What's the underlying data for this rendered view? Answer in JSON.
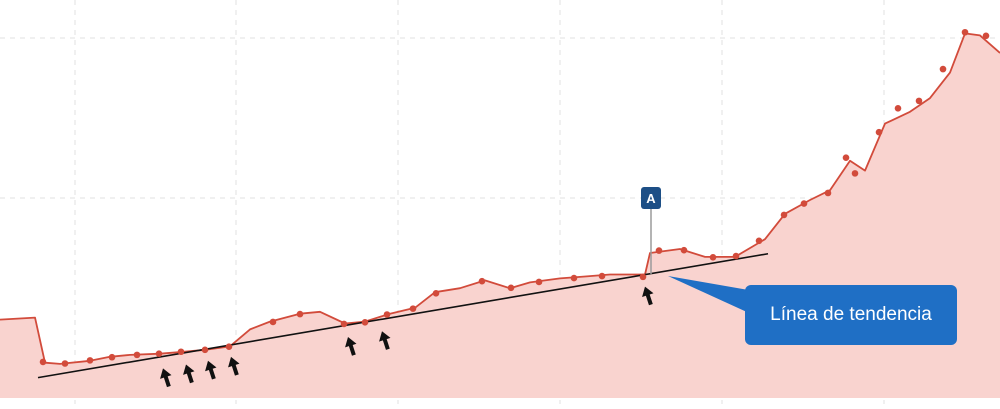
{
  "chart_data": {
    "type": "area",
    "title": "",
    "xlabel": "",
    "ylabel": "",
    "grid": true,
    "xlim": [
      0,
      100
    ],
    "ylim": [
      0,
      100
    ],
    "series": [
      {
        "color": "#d24b3b",
        "fill": "#f9d3cf",
        "points": [
          [
            0,
            20
          ],
          [
            3.5,
            20.5
          ],
          [
            4.5,
            9
          ],
          [
            6,
            8.7
          ],
          [
            9,
            9.5
          ],
          [
            11,
            10.5
          ],
          [
            13,
            11
          ],
          [
            16,
            11.3
          ],
          [
            18.5,
            11.8
          ],
          [
            20.5,
            12.3
          ],
          [
            23,
            13.2
          ],
          [
            25,
            17.5
          ],
          [
            27,
            19.5
          ],
          [
            30,
            21.5
          ],
          [
            32,
            22
          ],
          [
            34.5,
            19
          ],
          [
            36.5,
            19.5
          ],
          [
            39,
            21.5
          ],
          [
            41.5,
            23
          ],
          [
            43.5,
            27
          ],
          [
            46,
            28
          ],
          [
            48.5,
            30
          ],
          [
            51,
            28
          ],
          [
            53,
            29.5
          ],
          [
            56,
            30.5
          ],
          [
            58.5,
            31
          ],
          [
            61,
            31.5
          ],
          [
            64.5,
            31.5
          ],
          [
            65,
            37
          ],
          [
            68,
            38
          ],
          [
            70.5,
            36
          ],
          [
            73.5,
            36
          ],
          [
            76.5,
            40.5
          ],
          [
            78.5,
            47
          ],
          [
            81,
            50.5
          ],
          [
            83,
            53
          ],
          [
            85,
            60.5
          ],
          [
            86.5,
            58
          ],
          [
            88.5,
            70
          ],
          [
            91,
            73
          ],
          [
            93,
            76.5
          ],
          [
            95,
            83
          ],
          [
            96.5,
            93
          ],
          [
            98,
            92.5
          ],
          [
            100,
            88
          ]
        ],
        "markers": [
          [
            4.3,
            9.2
          ],
          [
            6.5,
            8.8
          ],
          [
            9,
            9.6
          ],
          [
            11.2,
            10.4
          ],
          [
            13.7,
            11
          ],
          [
            15.9,
            11.3
          ],
          [
            18.1,
            11.8
          ],
          [
            20.5,
            12.3
          ],
          [
            22.9,
            13.1
          ],
          [
            27.3,
            19.4
          ],
          [
            30,
            21.4
          ],
          [
            34.4,
            18.9
          ],
          [
            36.5,
            19.3
          ],
          [
            38.7,
            21.3
          ],
          [
            41.3,
            22.8
          ],
          [
            43.6,
            26.7
          ],
          [
            48.2,
            29.8
          ],
          [
            51.1,
            28.1
          ],
          [
            53.9,
            29.6
          ],
          [
            57.4,
            30.6
          ],
          [
            60.2,
            31.1
          ],
          [
            64.3,
            30.9
          ],
          [
            65.9,
            37.6
          ],
          [
            68.4,
            37.7
          ],
          [
            71.3,
            35.9
          ],
          [
            73.6,
            36.2
          ],
          [
            75.9,
            40.1
          ],
          [
            78.4,
            46.7
          ],
          [
            80.4,
            49.6
          ],
          [
            82.8,
            52.3
          ],
          [
            84.6,
            61.3
          ],
          [
            85.5,
            57.3
          ],
          [
            87.9,
            67.8
          ],
          [
            89.8,
            73.9
          ],
          [
            91.9,
            75.8
          ],
          [
            94.3,
            83.9
          ],
          [
            96.5,
            93.3
          ],
          [
            98.6,
            92.4
          ]
        ]
      }
    ],
    "trendline": {
      "from": [
        3.8,
        5.2
      ],
      "to": [
        76.8,
        36.8
      ]
    },
    "arrows": [
      16.3,
      18.6,
      20.8,
      23.1,
      34.8,
      38.2,
      64.5
    ],
    "event_flag": {
      "label": "A",
      "x": 65.1,
      "y": 31.6
    },
    "callout": {
      "text": "Línea de tendencia",
      "color": "#1f6fc5"
    }
  }
}
